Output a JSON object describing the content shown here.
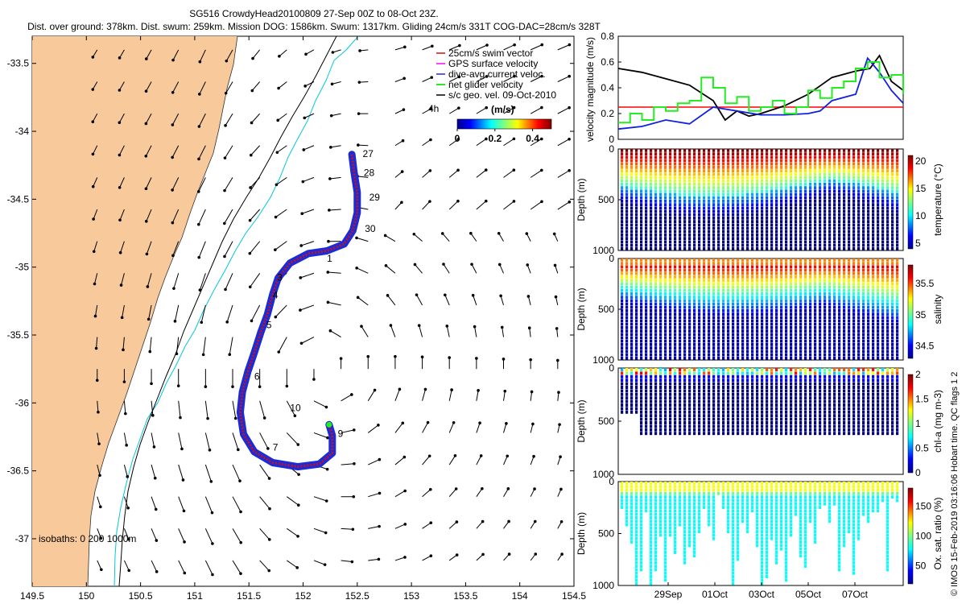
{
  "header": {
    "line1": "SG516 CrowdyHead20100809 27-Sep 00Z to 08-Oct 23Z.",
    "line2": "Dist. over ground: 378km. Dist. swum: 259km. Mission DOG: 1586km. Swum: 1317km. Gliding 24cm/s 331T COG-DAC=28cm/s 328T"
  },
  "credit": "© IMOS 15-Feb-2019 03:16:06 Hobart time. QC flags 1  2",
  "colors": {
    "land": "#f8c99b",
    "arrow": "#000000",
    "track_blue": "#1a2bd8",
    "track_red": "#d01010",
    "isobath_200": "#00c8dc",
    "isobath_1000": "#000000",
    "threshold": "#ff0000",
    "green": "#22ee22"
  },
  "chart_data": [
    {
      "type": "map",
      "id": "track-map",
      "xlim": [
        149.5,
        154.5
      ],
      "ylim": [
        -37.35,
        -33.3
      ],
      "xticks": [
        "149.5",
        "150",
        "150.5",
        "151",
        "151.5",
        "152",
        "152.5",
        "153",
        "153.5",
        "154",
        "154.5"
      ],
      "yticks": [
        "-33.5",
        "-34",
        "-34.5",
        "-35",
        "-35.5",
        "-36",
        "-36.5",
        "-37"
      ],
      "legend": [
        "25cm/s swim vector",
        "GPS surface velocity",
        "dive-avg current veloc.",
        "net glider velocity",
        "s/c geo. vel. 09-Oct-2010"
      ],
      "legend_tag": "4h",
      "colorbar": {
        "label": "(m/s)",
        "ticks": [
          "0",
          "0.2",
          "0.4"
        ],
        "range": [
          0,
          0.5
        ]
      },
      "isobaths_label": "isobaths: 0  200  1000m",
      "track": [
        [
          152.45,
          -34.17
        ],
        [
          152.47,
          -34.3
        ],
        [
          152.5,
          -34.45
        ],
        [
          152.5,
          -34.6
        ],
        [
          152.46,
          -34.73
        ],
        [
          152.38,
          -34.83
        ],
        [
          152.22,
          -34.88
        ],
        [
          152.05,
          -34.9
        ],
        [
          151.88,
          -34.97
        ],
        [
          151.77,
          -35.08
        ],
        [
          151.72,
          -35.2
        ],
        [
          151.67,
          -35.35
        ],
        [
          151.61,
          -35.48
        ],
        [
          151.55,
          -35.63
        ],
        [
          151.49,
          -35.77
        ],
        [
          151.44,
          -35.92
        ],
        [
          151.42,
          -36.07
        ],
        [
          151.45,
          -36.23
        ],
        [
          151.55,
          -36.36
        ],
        [
          151.72,
          -36.44
        ],
        [
          151.95,
          -36.47
        ],
        [
          152.15,
          -36.45
        ],
        [
          152.27,
          -36.37
        ],
        [
          152.27,
          -36.24
        ],
        [
          152.24,
          -36.16
        ]
      ],
      "day_labels": [
        {
          "text": "27",
          "lon": 152.55,
          "lat": -34.19
        },
        {
          "text": "28",
          "lon": 152.56,
          "lat": -34.33
        },
        {
          "text": "29",
          "lon": 152.61,
          "lat": -34.51
        },
        {
          "text": "30",
          "lon": 152.57,
          "lat": -34.74
        },
        {
          "text": "1",
          "lon": 152.22,
          "lat": -34.96
        },
        {
          "text": "3",
          "lon": 151.76,
          "lat": -35.1
        },
        {
          "text": "4",
          "lon": 151.72,
          "lat": -35.23
        },
        {
          "text": "5",
          "lon": 151.66,
          "lat": -35.45
        },
        {
          "text": "6",
          "lon": 151.55,
          "lat": -35.83
        },
        {
          "text": "7",
          "lon": 151.72,
          "lat": -36.35
        },
        {
          "text": "9",
          "lon": 152.32,
          "lat": -36.25
        },
        {
          "text": "10",
          "lon": 151.88,
          "lat": -36.06
        }
      ]
    },
    {
      "type": "line",
      "id": "velocity-panel",
      "ylabel": "velocity magnitude (m/s)",
      "ylim": [
        0,
        0.8
      ],
      "yticks": [
        "0",
        "0.2",
        "0.4",
        "0.6",
        "0.8"
      ],
      "xlim": [
        0,
        12
      ],
      "threshold": 0.25,
      "series": [
        {
          "name": "s/c geo. vel.",
          "color": "black",
          "x": [
            0,
            1,
            2,
            3,
            4,
            4.5,
            5,
            5.5,
            6,
            7,
            8,
            9,
            10,
            10.6,
            11,
            11.5,
            12
          ],
          "y": [
            0.55,
            0.52,
            0.47,
            0.42,
            0.3,
            0.15,
            0.22,
            0.18,
            0.2,
            0.26,
            0.35,
            0.48,
            0.53,
            0.55,
            0.65,
            0.45,
            0.38
          ]
        },
        {
          "name": "dive-avg current veloc.",
          "color": "blue",
          "x": [
            0,
            1,
            2,
            3,
            4,
            5,
            6,
            7,
            8,
            8.5,
            9,
            10,
            10.5,
            11,
            11.5,
            12
          ],
          "y": [
            0.08,
            0.1,
            0.15,
            0.12,
            0.25,
            0.22,
            0.19,
            0.19,
            0.2,
            0.22,
            0.3,
            0.35,
            0.63,
            0.52,
            0.38,
            0.28
          ]
        },
        {
          "name": "net glider velocity",
          "color": "green",
          "x": [
            0,
            0.5,
            1,
            1.5,
            2,
            2.5,
            3,
            3.5,
            4,
            4.5,
            5,
            5.5,
            6,
            6.5,
            7,
            7.5,
            8,
            8.5,
            9,
            9.5,
            10,
            10.5,
            11,
            11.5,
            12
          ],
          "y": [
            0.13,
            0.2,
            0.15,
            0.25,
            0.22,
            0.28,
            0.3,
            0.48,
            0.4,
            0.28,
            0.33,
            0.22,
            0.25,
            0.3,
            0.2,
            0.25,
            0.38,
            0.32,
            0.4,
            0.45,
            0.55,
            0.6,
            0.48,
            0.5,
            0.35
          ]
        }
      ]
    },
    {
      "type": "heatmap",
      "id": "temperature-panel",
      "ylabel": "Depth (m)",
      "yticks": [
        "0",
        "500",
        "1000"
      ],
      "colorbar": {
        "label": "temperature (°C)",
        "ticks": [
          "5",
          "10",
          "15",
          "20"
        ],
        "range": [
          4,
          21
        ]
      }
    },
    {
      "type": "heatmap",
      "id": "salinity-panel",
      "ylabel": "Depth (m)",
      "yticks": [
        "0",
        "500",
        "1000"
      ],
      "colorbar": {
        "label": "salinity",
        "ticks": [
          "34.5",
          "35",
          "35.5"
        ],
        "range": [
          34.3,
          35.8
        ]
      }
    },
    {
      "type": "heatmap",
      "id": "chla-panel",
      "ylabel": "Depth (m)",
      "yticks": [
        "0",
        "500",
        "1000"
      ],
      "colorbar": {
        "label": "chl-a (mg m-3)",
        "ticks": [
          "0",
          "0.5",
          "1",
          "1.5",
          "2"
        ],
        "range": [
          0,
          2
        ]
      }
    },
    {
      "type": "heatmap",
      "id": "oxygen-panel",
      "ylabel": "Depth (m)",
      "yticks": [
        "0",
        "500",
        "1000"
      ],
      "xticks": [
        "29Sep",
        "01Oct",
        "03Oct",
        "05Oct",
        "07Oct"
      ],
      "colorbar": {
        "label": "Ox. sat. ratio (%)",
        "ticks": [
          "50",
          "100",
          "150"
        ],
        "range": [
          20,
          180
        ]
      }
    }
  ]
}
